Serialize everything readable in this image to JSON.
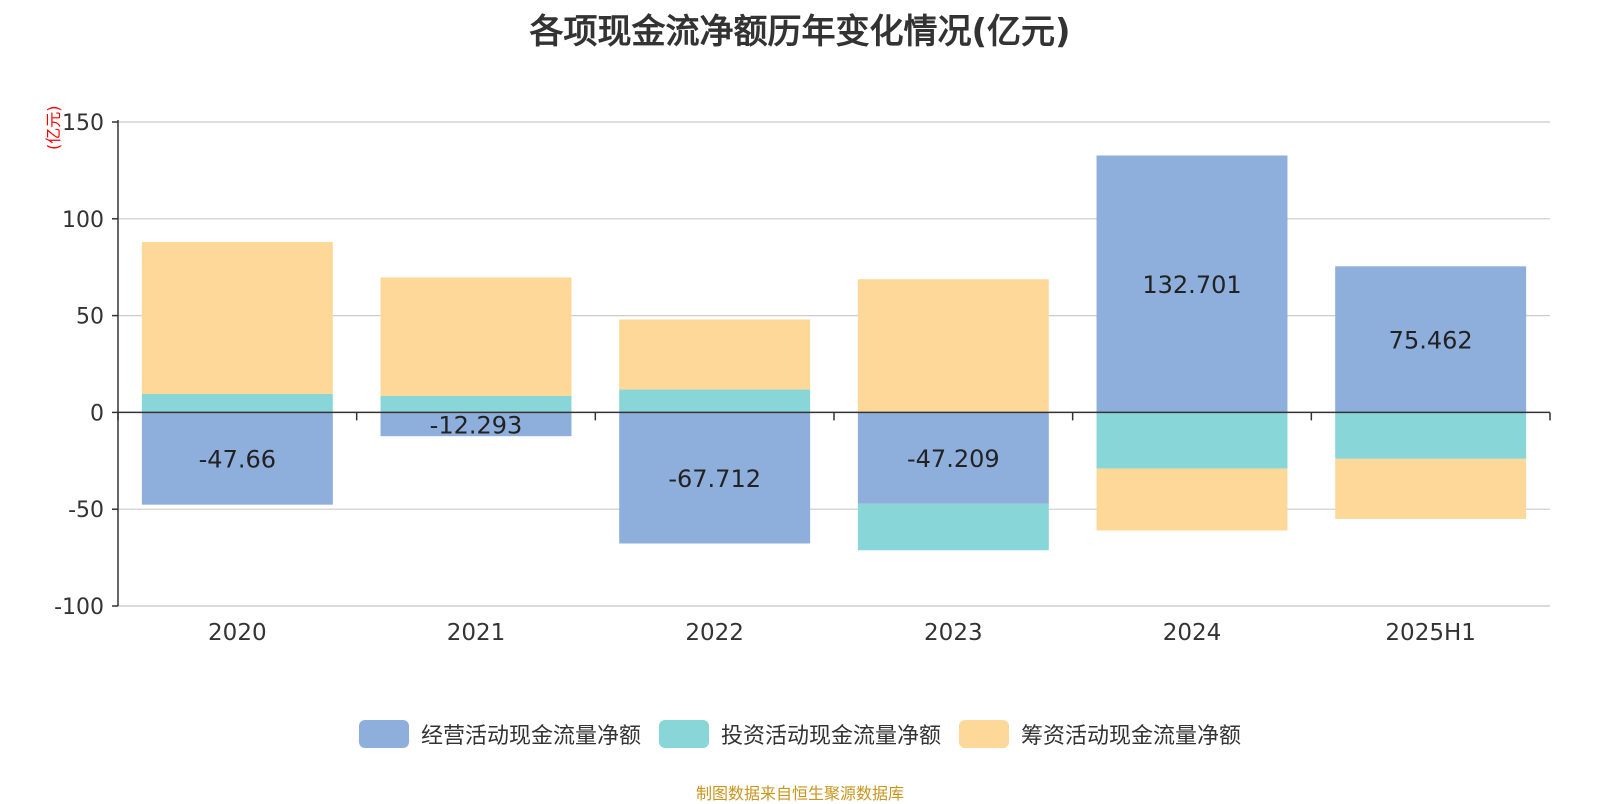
{
  "chart_data": {
    "type": "bar",
    "stacked": true,
    "title": "各项现金流净额历年变化情况(亿元)",
    "unit_label": "(亿元)",
    "categories": [
      "2020",
      "2021",
      "2022",
      "2023",
      "2024",
      "2025H1"
    ],
    "series": [
      {
        "name": "经营活动现金流量净额",
        "color": "#8eaedc",
        "values": [
          -47.66,
          -12.293,
          -67.712,
          -47.209,
          132.701,
          75.462
        ],
        "show_labels": true
      },
      {
        "name": "投资活动现金流量净额",
        "color": "#88d6d8",
        "values": [
          9.5,
          8.5,
          11.8,
          -24.0,
          -29.0,
          -24.0
        ],
        "show_labels": false
      },
      {
        "name": "筹资活动现金流量净额",
        "color": "#fdd898",
        "values": [
          78.5,
          61.2,
          36.2,
          68.8,
          -32.0,
          -31.0
        ],
        "show_labels": false
      }
    ],
    "ylim": [
      -100,
      150
    ],
    "yticks": [
      -100,
      -50,
      0,
      50,
      100,
      150
    ],
    "grid": true,
    "legend_position": "bottom"
  },
  "source_note": "制图数据来自恒生聚源数据库"
}
